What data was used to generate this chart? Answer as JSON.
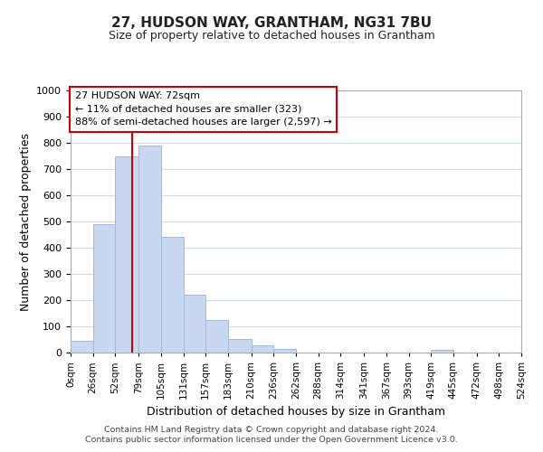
{
  "title": "27, HUDSON WAY, GRANTHAM, NG31 7BU",
  "subtitle": "Size of property relative to detached houses in Grantham",
  "xlabel": "Distribution of detached houses by size in Grantham",
  "ylabel": "Number of detached properties",
  "bar_edges": [
    0,
    26,
    52,
    79,
    105,
    131,
    157,
    183,
    210,
    236,
    262,
    288,
    314,
    341,
    367,
    393,
    419,
    445,
    472,
    498,
    524
  ],
  "bar_heights": [
    45,
    490,
    750,
    790,
    440,
    220,
    125,
    53,
    28,
    15,
    0,
    0,
    0,
    0,
    0,
    0,
    10,
    0,
    0,
    0
  ],
  "bar_color": "#c8d8f0",
  "bar_edge_color": "#a0b8d8",
  "property_size": 72,
  "vline_color": "#cc0000",
  "ylim": [
    0,
    1000
  ],
  "tick_labels": [
    "0sqm",
    "26sqm",
    "52sqm",
    "79sqm",
    "105sqm",
    "131sqm",
    "157sqm",
    "183sqm",
    "210sqm",
    "236sqm",
    "262sqm",
    "288sqm",
    "314sqm",
    "341sqm",
    "367sqm",
    "393sqm",
    "419sqm",
    "445sqm",
    "472sqm",
    "498sqm",
    "524sqm"
  ],
  "annotation_title": "27 HUDSON WAY: 72sqm",
  "annotation_line1": "← 11% of detached houses are smaller (323)",
  "annotation_line2": "88% of semi-detached houses are larger (2,597) →",
  "annotation_box_color": "#ffffff",
  "annotation_box_edge": "#cc0000",
  "footnote1": "Contains HM Land Registry data © Crown copyright and database right 2024.",
  "footnote2": "Contains public sector information licensed under the Open Government Licence v3.0.",
  "grid_color": "#d0dce8",
  "background_color": "#ffffff"
}
